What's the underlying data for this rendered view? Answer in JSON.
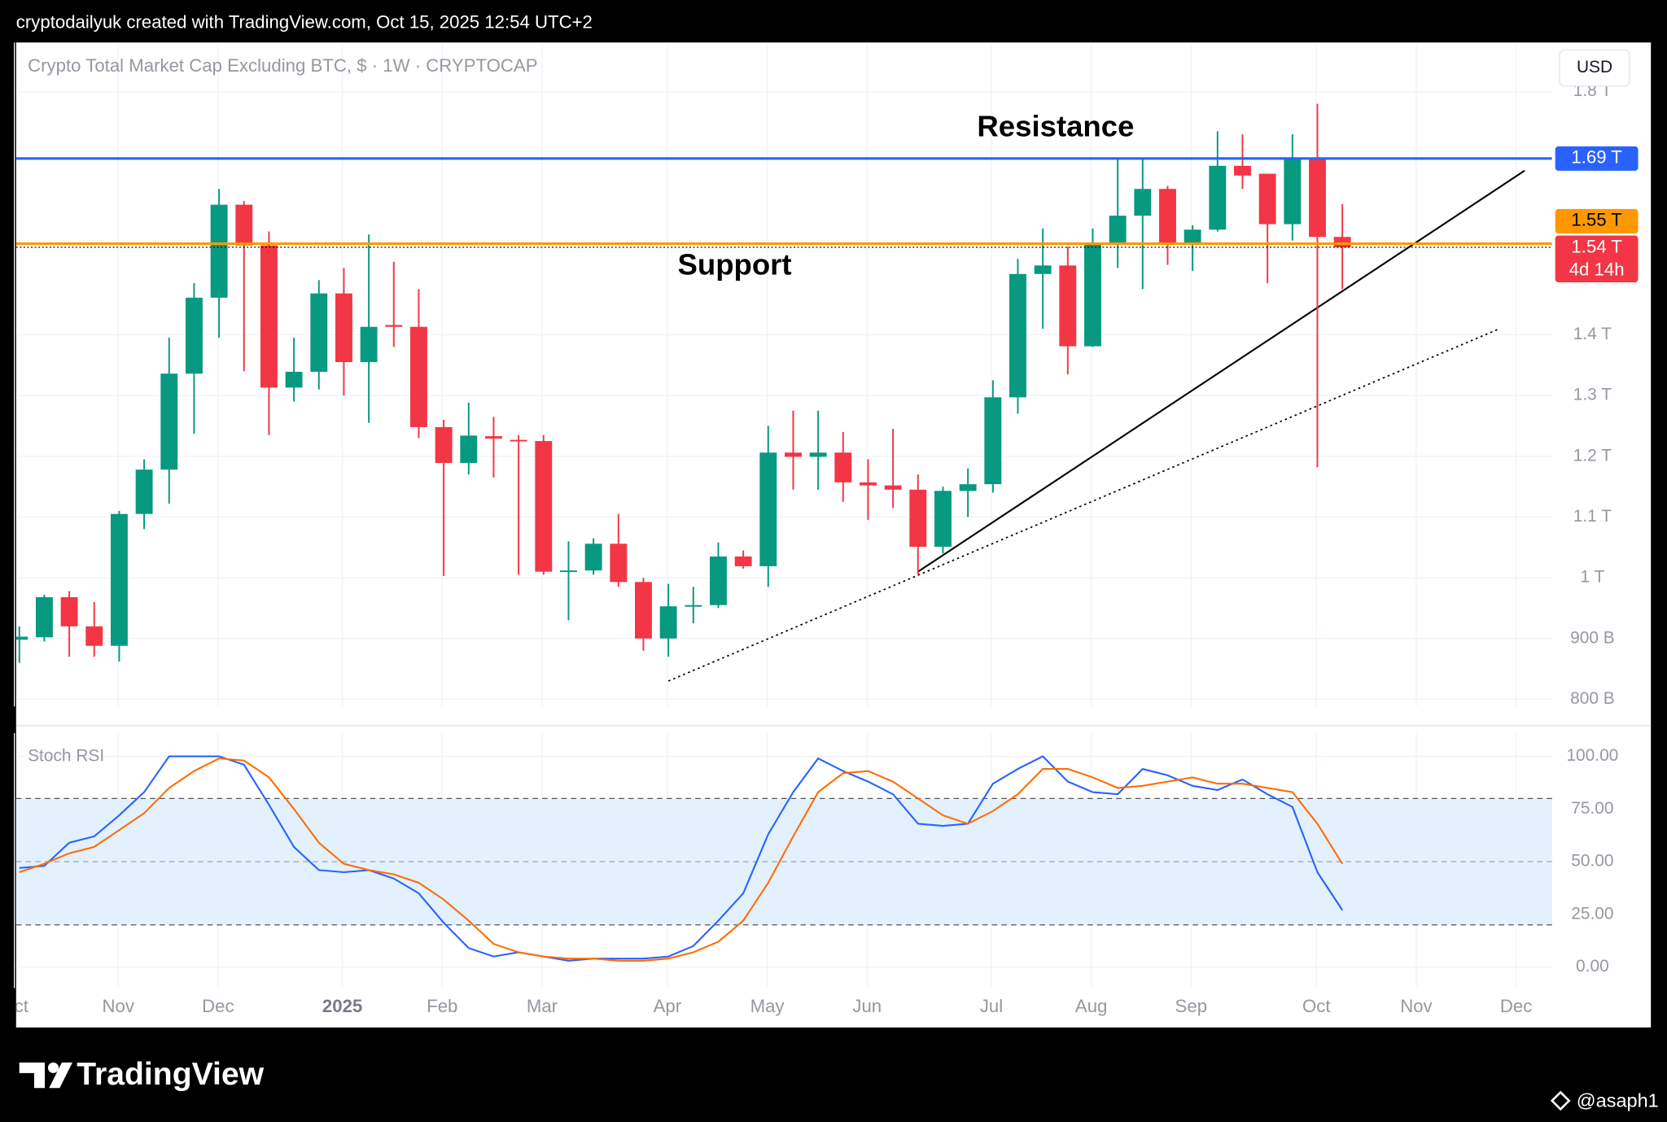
{
  "header": "cryptodailyuk created with TradingView.com, Oct 15, 2025 12:54 UTC+2",
  "currency": "USD",
  "annotations": [
    "Resistance",
    "Support"
  ],
  "brand": "TradingView",
  "author": "@asaph1",
  "chart_data": [
    {
      "type": "candlestick",
      "title": "Crypto Total Market Cap Excluding BTC, $ · 1W · CRYPTOCAP",
      "categories": [
        null,
        null,
        null,
        null,
        null,
        null,
        null,
        null,
        null,
        null,
        null,
        null,
        null,
        null,
        null,
        null,
        null,
        null,
        null,
        null,
        null,
        null,
        null,
        null,
        null,
        null,
        null,
        null,
        null,
        null,
        null,
        null,
        null,
        null,
        null,
        null,
        null,
        null,
        null,
        null,
        null,
        null,
        null,
        null,
        null,
        null,
        null,
        null,
        null,
        null,
        null,
        null,
        null,
        null
      ],
      "open": [
        898,
        902,
        968,
        920,
        888,
        1105,
        1178,
        1336,
        1461,
        1614,
        1547,
        1313,
        1339,
        1468,
        1355,
        1416,
        1413,
        1248,
        1189,
        1233,
        1227,
        1225,
        1010,
        1012,
        1056,
        993,
        900,
        953,
        955,
        1035,
        1019,
        1206,
        1199,
        1206,
        1157,
        1152,
        1145,
        1051,
        1143,
        1154,
        1297,
        1500,
        1514,
        1381,
        1551,
        1596,
        1640,
        1551,
        1573,
        1678,
        1665,
        1582,
        1689,
        1561
      ],
      "high": [
        920,
        972,
        978,
        960,
        1110,
        1195,
        1395,
        1485,
        1640,
        1620,
        1570,
        1395,
        1490,
        1510,
        1565,
        1520,
        1475,
        1260,
        1288,
        1265,
        1235,
        1235,
        1060,
        1065,
        1105,
        1000,
        990,
        985,
        1058,
        1045,
        1250,
        1275,
        1275,
        1240,
        1195,
        1245,
        1170,
        1150,
        1180,
        1325,
        1525,
        1575,
        1545,
        1575,
        1690,
        1690,
        1645,
        1580,
        1735,
        1730,
        1665,
        1730,
        1780,
        1615
      ],
      "low": [
        860,
        895,
        870,
        870,
        862,
        1080,
        1122,
        1237,
        1395,
        1340,
        1235,
        1290,
        1310,
        1300,
        1255,
        1380,
        1230,
        1003,
        1170,
        1165,
        1005,
        1005,
        930,
        1005,
        985,
        880,
        870,
        925,
        950,
        1015,
        985,
        1145,
        1145,
        1125,
        1095,
        1115,
        1005,
        1040,
        1100,
        1140,
        1270,
        1410,
        1335,
        1380,
        1510,
        1475,
        1515,
        1505,
        1570,
        1640,
        1485,
        1555,
        1182,
        1475
      ],
      "close": [
        903,
        968,
        920,
        888,
        1105,
        1178,
        1336,
        1461,
        1614,
        1547,
        1313,
        1339,
        1468,
        1355,
        1413,
        1413,
        1248,
        1189,
        1234,
        1229,
        1225,
        1010,
        1012,
        1056,
        993,
        900,
        953,
        955,
        1035,
        1019,
        1206,
        1199,
        1206,
        1157,
        1152,
        1145,
        1051,
        1143,
        1154,
        1297,
        1500,
        1514,
        1381,
        1551,
        1596,
        1640,
        1551,
        1573,
        1678,
        1662,
        1582,
        1689,
        1561,
        1544
      ],
      "up_color": "#089981",
      "down_color": "#f23645",
      "xlim": [
        -0.13,
        61.4
      ],
      "ylim": [
        788,
        1881
      ],
      "yticks": [
        {
          "value": 800,
          "label": "800 B"
        },
        {
          "value": 900,
          "label": "900 B"
        },
        {
          "value": 1000,
          "label": "1 T"
        },
        {
          "value": 1100,
          "label": "1.1 T"
        },
        {
          "value": 1200,
          "label": "1.2 T"
        },
        {
          "value": 1300,
          "label": "1.3 T"
        },
        {
          "value": 1400,
          "label": "1.4 T"
        },
        {
          "value": 1800,
          "label": "1.8 T"
        }
      ],
      "levels": [
        {
          "value": 1690,
          "label": "1.69 T",
          "color": "#2962ff"
        },
        {
          "value": 1550,
          "label": "1.55 T",
          "color": "#ff9800"
        },
        {
          "value": 1544,
          "label": "1.54 T",
          "sublabel": "4d 14h",
          "color": "#f23645",
          "dotted": true
        }
      ],
      "trendlines": [
        {
          "x": [
            36,
            60.3
          ],
          "y": [
            1010,
            1670
          ],
          "color": "#000000",
          "dotted": false
        },
        {
          "x": [
            26,
            59.3
          ],
          "y": [
            830,
            1410
          ],
          "color": "#000000",
          "dotted": true
        }
      ],
      "grid": true
    },
    {
      "type": "line",
      "title": "Stoch RSI",
      "series": [
        {
          "color": "#2962ff",
          "values": [
            47,
            48,
            59,
            62,
            72,
            83,
            100,
            100,
            100,
            96,
            77,
            57,
            46,
            45,
            46,
            42,
            35,
            21,
            9,
            5,
            7,
            5,
            3,
            4,
            4,
            4,
            5,
            10,
            22,
            35,
            63,
            83,
            99,
            93,
            88,
            82,
            68,
            67,
            68,
            87,
            94,
            100,
            88,
            83,
            82,
            94,
            91,
            86,
            84,
            89,
            82,
            76,
            45,
            27
          ]
        },
        {
          "color": "#ff6d00",
          "values": [
            45,
            49,
            54,
            57,
            65,
            73,
            85,
            93,
            99,
            98,
            90,
            75,
            59,
            49,
            46,
            44,
            40,
            32,
            22,
            11,
            7,
            5,
            4,
            4,
            3,
            3,
            4,
            7,
            12,
            22,
            40,
            62,
            83,
            92,
            93,
            88,
            80,
            72,
            68,
            74,
            82,
            94,
            94,
            90,
            85,
            86,
            88,
            90,
            87,
            87,
            85,
            83,
            68,
            49
          ]
        }
      ],
      "bands": [
        20,
        80
      ],
      "band_color": "#e3f0fd",
      "midline": 50,
      "xlim": [
        -0.13,
        61.4
      ],
      "ylim": [
        -10,
        111
      ],
      "yticks": [
        {
          "value": 0,
          "label": "0.00"
        },
        {
          "value": 25,
          "label": "25.00"
        },
        {
          "value": 50,
          "label": "50.00"
        },
        {
          "value": 75,
          "label": "75.00"
        },
        {
          "value": 100,
          "label": "100.00"
        }
      ],
      "xticks": [
        {
          "value": -0.2,
          "label": "Oct"
        },
        {
          "value": 3.96,
          "label": "Nov"
        },
        {
          "value": 7.96,
          "label": "Dec"
        },
        {
          "value": 12.94,
          "label": "2025",
          "bold": true
        },
        {
          "value": 16.94,
          "label": "Feb"
        },
        {
          "value": 20.94,
          "label": "Mar"
        },
        {
          "value": 25.96,
          "label": "Apr"
        },
        {
          "value": 29.96,
          "label": "May"
        },
        {
          "value": 33.96,
          "label": "Jun"
        },
        {
          "value": 38.94,
          "label": "Jul"
        },
        {
          "value": 42.94,
          "label": "Aug"
        },
        {
          "value": 46.94,
          "label": "Sep"
        },
        {
          "value": 51.96,
          "label": "Oct"
        },
        {
          "value": 55.96,
          "label": "Nov"
        },
        {
          "value": 59.96,
          "label": "Dec"
        }
      ],
      "grid": true
    }
  ]
}
